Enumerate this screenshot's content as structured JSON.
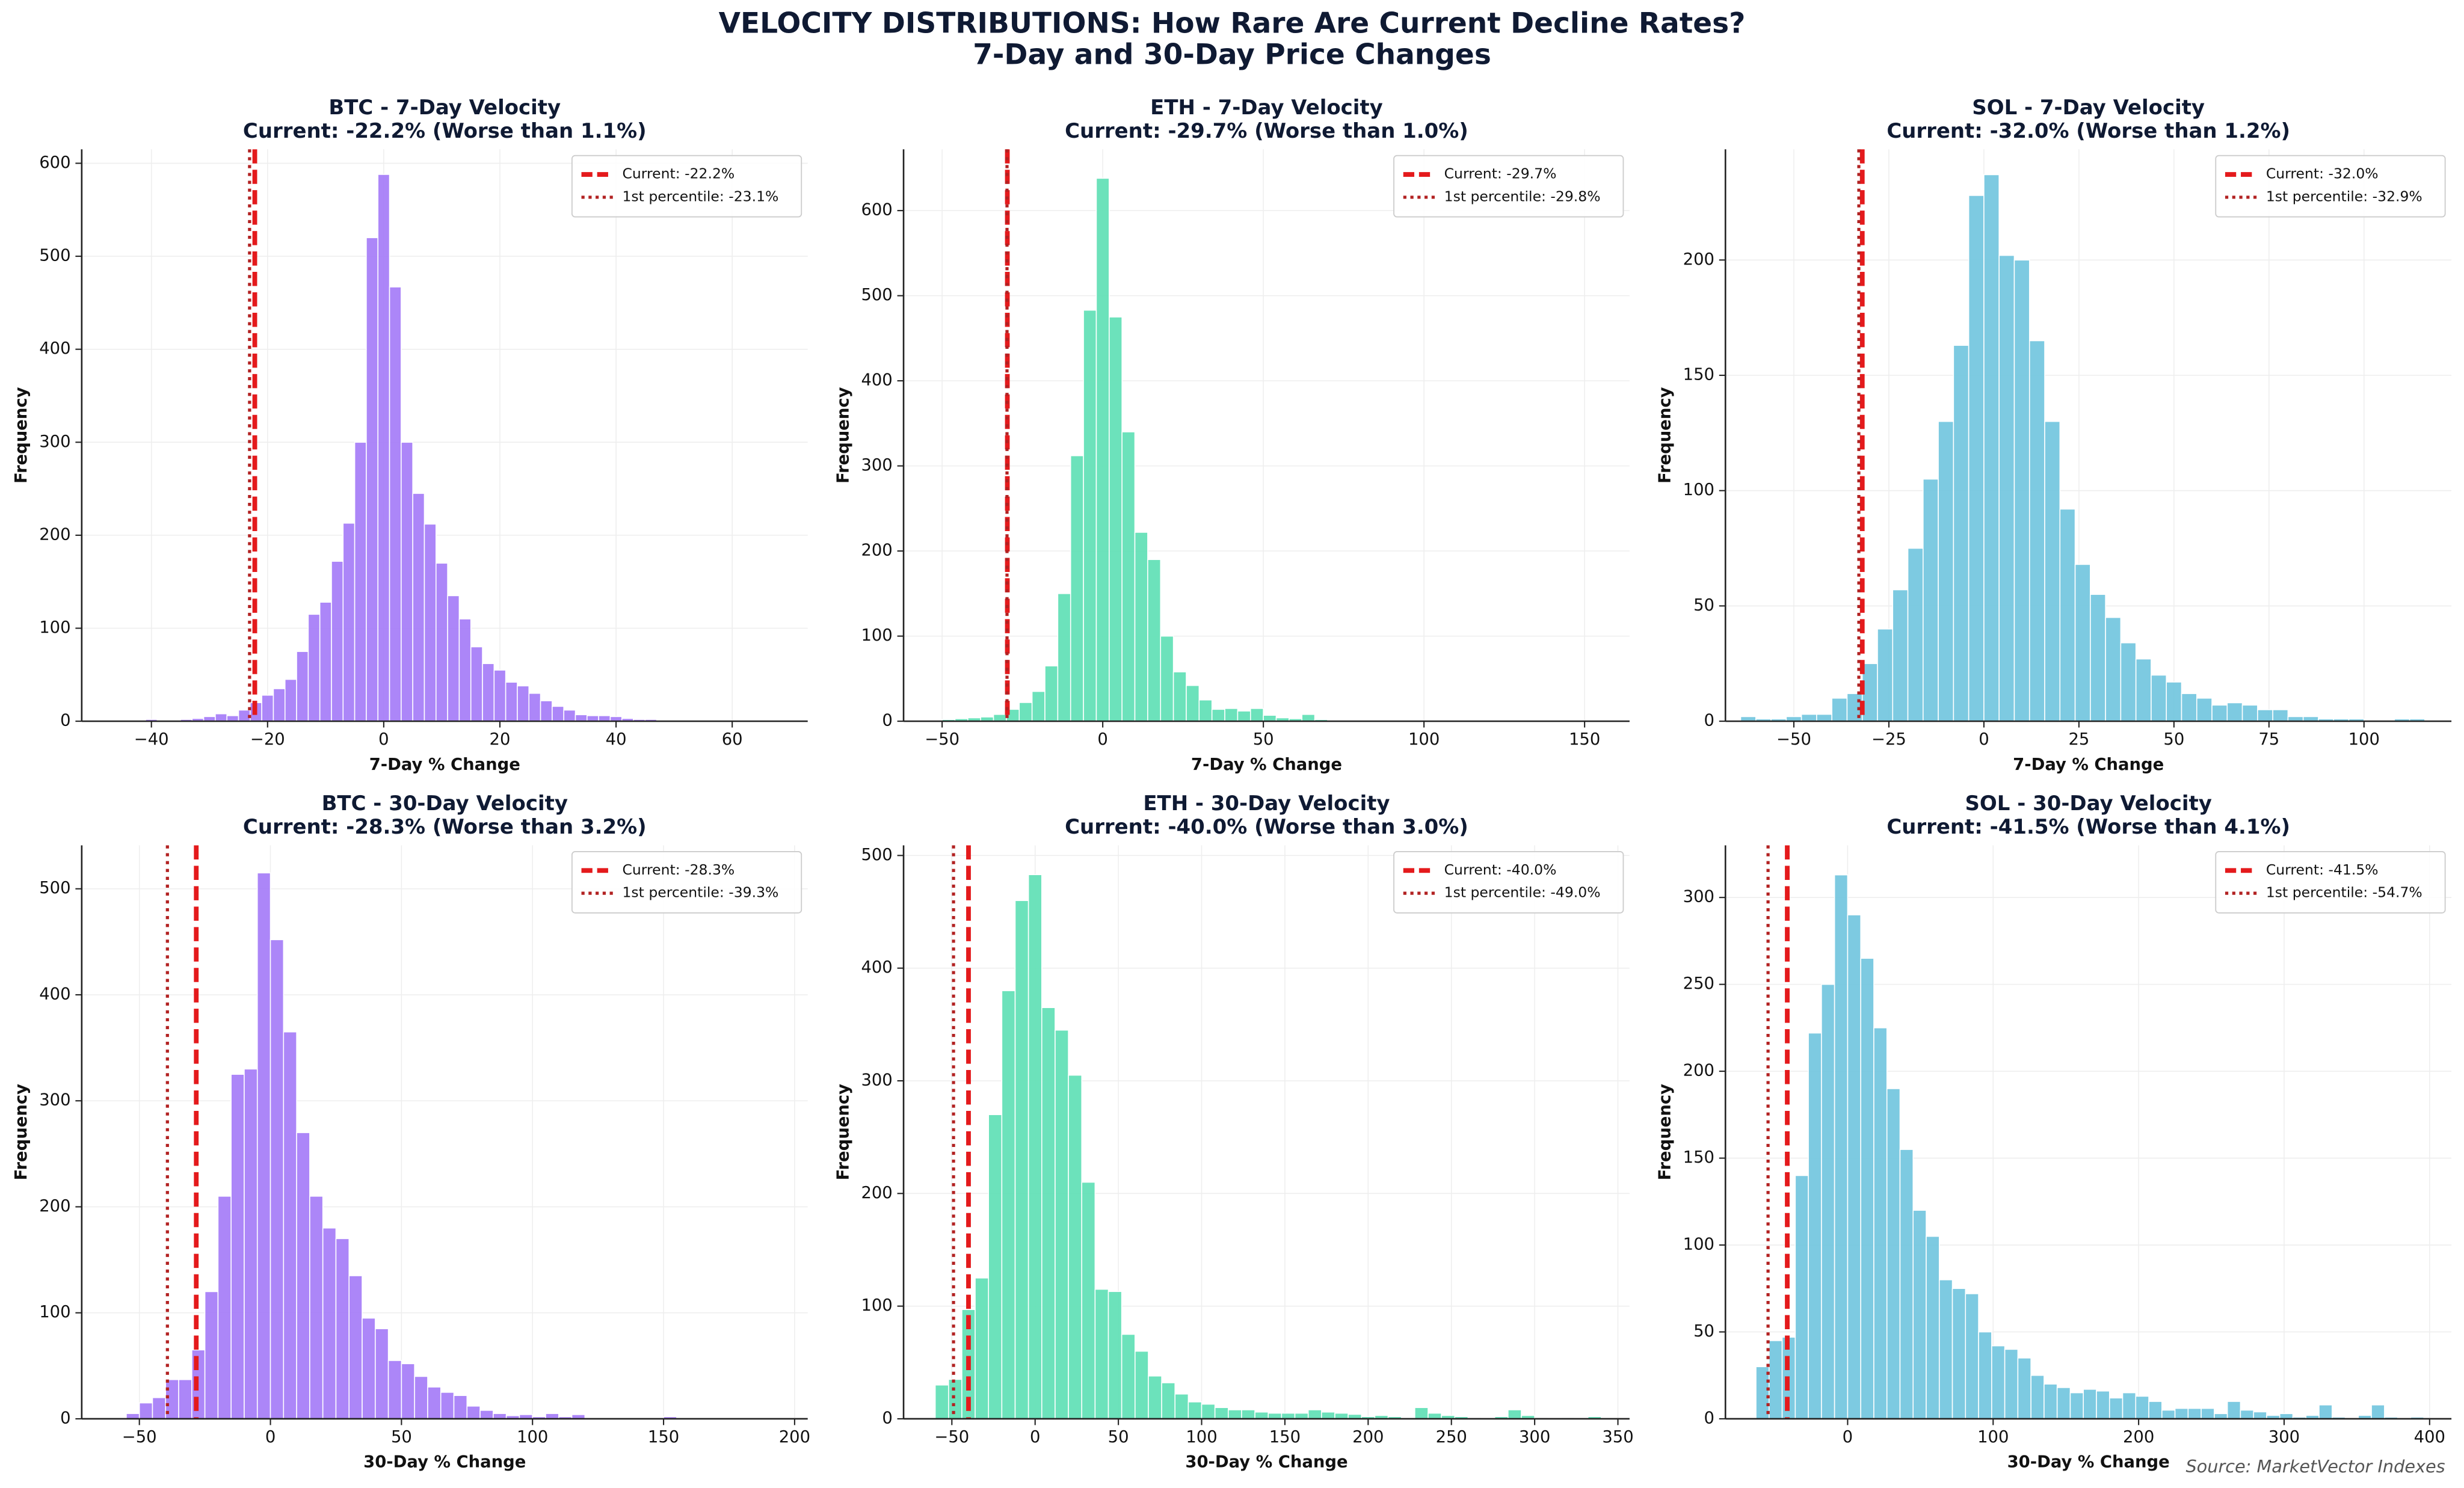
{
  "title": "VELOCITY DISTRIBUTIONS: How Rare Are Current Decline Rates?",
  "subtitle": "7-Day and 30-Day Price Changes",
  "source": "Source: MarketVector Indexes",
  "chart_data": [
    {
      "type": "histogram",
      "title": "BTC - 7-Day Velocity",
      "subtitle": "Current: -22.2% (Worse than 1.1%)",
      "xlabel": "7-Day % Change",
      "ylabel": "Frequency",
      "color": "#a57cf7",
      "grid": true,
      "legend": "upper right",
      "bins": [
        -47,
        -45,
        -43,
        -41,
        -39,
        -37,
        -35,
        -33,
        -31,
        -29,
        -27,
        -25,
        -23,
        -21,
        -19,
        -17,
        -15,
        -13,
        -11,
        -9,
        -7,
        -5,
        -3,
        -1,
        1,
        3,
        5,
        7,
        9,
        11,
        13,
        15,
        17,
        19,
        21,
        23,
        25,
        27,
        29,
        31,
        33,
        35,
        37,
        39,
        41,
        43,
        45,
        47,
        49,
        51,
        53,
        55,
        57,
        59,
        61,
        63,
        65,
        67,
        69
      ],
      "values": [
        1,
        0,
        1,
        2,
        1,
        1,
        2,
        3,
        5,
        8,
        6,
        12,
        20,
        28,
        35,
        45,
        75,
        115,
        128,
        172,
        213,
        300,
        520,
        588,
        467,
        300,
        245,
        212,
        170,
        135,
        110,
        80,
        62,
        55,
        42,
        38,
        30,
        22,
        16,
        12,
        7,
        6,
        6,
        5,
        3,
        2,
        2,
        1,
        1,
        1,
        0,
        0,
        0,
        0,
        0,
        0,
        1,
        0,
        1
      ],
      "lines": [
        {
          "name": "Current: -22.2%",
          "value": -22.2,
          "color": "#e41a1c",
          "style": "dashed"
        },
        {
          "name": "1st percentile: -23.1%",
          "value": -23.1,
          "color": "#b22222",
          "style": "dotted"
        }
      ],
      "xlim": [
        -52,
        73
      ],
      "ylim": [
        0,
        615
      ],
      "xticks": [
        {
          "value": -40,
          "label": "−40"
        },
        {
          "value": -20,
          "label": "−20"
        },
        0,
        20,
        40,
        60
      ],
      "yticks": [
        0,
        100,
        200,
        300,
        400,
        500,
        600
      ]
    },
    {
      "type": "histogram",
      "title": "ETH - 7-Day Velocity",
      "subtitle": "Current: -29.7% (Worse than 1.0%)",
      "xlabel": "7-Day % Change",
      "ylabel": "Frequency",
      "color": "#5fe0b5",
      "grid": true,
      "legend": "upper right",
      "bins": [
        -58,
        -54,
        -50,
        -46,
        -42,
        -38,
        -34,
        -30,
        -26,
        -22,
        -18,
        -14,
        -10,
        -6,
        -2,
        2,
        6,
        10,
        14,
        18,
        22,
        26,
        30,
        34,
        38,
        42,
        46,
        50,
        54,
        58,
        62,
        66,
        70,
        74,
        78,
        82,
        86,
        90,
        94,
        98,
        102,
        106,
        110,
        114,
        118,
        122,
        126,
        130,
        134,
        138,
        142,
        146,
        150,
        154,
        158,
        162
      ],
      "values": [
        1,
        1,
        2,
        3,
        4,
        5,
        8,
        14,
        22,
        35,
        65,
        150,
        312,
        483,
        638,
        475,
        340,
        222,
        190,
        100,
        58,
        42,
        25,
        14,
        15,
        12,
        15,
        7,
        4,
        3,
        8,
        2,
        1,
        1,
        0,
        0,
        0,
        0,
        0,
        0,
        0,
        0,
        1,
        0,
        0,
        0,
        0,
        0,
        0,
        0,
        0,
        0,
        0,
        0,
        0
      ],
      "lines": [
        {
          "name": "Current: -29.7%",
          "value": -29.7,
          "color": "#e41a1c",
          "style": "dashed"
        },
        {
          "name": "1st percentile: -29.8%",
          "value": -29.8,
          "color": "#b22222",
          "style": "dotted"
        }
      ],
      "xlim": [
        -62,
        164
      ],
      "ylim": [
        0,
        672
      ],
      "xticks": [
        {
          "value": -50,
          "label": "−50"
        },
        0,
        50,
        100,
        150
      ],
      "yticks": [
        0,
        100,
        200,
        300,
        400,
        500,
        600
      ]
    },
    {
      "type": "histogram",
      "title": "SOL - 7-Day Velocity",
      "subtitle": "Current: -32.0% (Worse than 1.2%)",
      "xlabel": "7-Day % Change",
      "ylabel": "Frequency",
      "color": "#72c6de",
      "grid": true,
      "legend": "upper right",
      "bins": [
        -64,
        -60,
        -56,
        -52,
        -48,
        -44,
        -40,
        -36,
        -32,
        -28,
        -24,
        -20,
        -16,
        -12,
        -8,
        -4,
        0,
        4,
        8,
        12,
        16,
        20,
        24,
        28,
        32,
        36,
        40,
        44,
        48,
        52,
        56,
        60,
        64,
        68,
        72,
        76,
        80,
        84,
        88,
        92,
        96,
        100,
        104,
        108,
        112,
        116,
        120
      ],
      "values": [
        2,
        1,
        1,
        2,
        3,
        3,
        10,
        12,
        25,
        40,
        57,
        75,
        105,
        130,
        163,
        228,
        237,
        202,
        200,
        165,
        130,
        92,
        68,
        55,
        45,
        34,
        27,
        20,
        17,
        12,
        10,
        7,
        8,
        7,
        5,
        5,
        2,
        2,
        1,
        1,
        1,
        0,
        0,
        1,
        1,
        0
      ],
      "lines": [
        {
          "name": "Current: -32.0%",
          "value": -32.0,
          "color": "#e41a1c",
          "style": "dashed"
        },
        {
          "name": "1st percentile: -32.9%",
          "value": -32.9,
          "color": "#b22222",
          "style": "dotted"
        }
      ],
      "xlim": [
        -68,
        123
      ],
      "ylim": [
        0,
        248
      ],
      "xticks": [
        {
          "value": -50,
          "label": "−50"
        },
        {
          "value": -25,
          "label": "−25"
        },
        0,
        25,
        50,
        75,
        100
      ],
      "yticks": [
        0,
        50,
        100,
        150,
        200
      ]
    },
    {
      "type": "histogram",
      "title": "BTC - 30-Day Velocity",
      "subtitle": "Current: -28.3% (Worse than 3.2%)",
      "xlabel": "30-Day % Change",
      "ylabel": "Frequency",
      "color": "#a57cf7",
      "grid": true,
      "legend": "upper right",
      "bins": [
        -55,
        -50,
        -45,
        -40,
        -35,
        -30,
        -25,
        -20,
        -15,
        -10,
        -5,
        0,
        5,
        10,
        15,
        20,
        25,
        30,
        35,
        40,
        45,
        50,
        55,
        60,
        65,
        70,
        75,
        80,
        85,
        90,
        95,
        100,
        105,
        110,
        115,
        120,
        125,
        130,
        135,
        140,
        145,
        150,
        155
      ],
      "values": [
        5,
        15,
        20,
        37,
        37,
        65,
        120,
        210,
        325,
        330,
        515,
        452,
        365,
        270,
        210,
        180,
        170,
        135,
        95,
        85,
        55,
        52,
        40,
        30,
        25,
        22,
        12,
        8,
        5,
        3,
        4,
        2,
        5,
        2,
        4,
        0,
        0,
        0,
        0,
        0,
        0,
        2
      ],
      "lines": [
        {
          "name": "Current: -28.3%",
          "value": -28.3,
          "color": "#e41a1c",
          "style": "dashed"
        },
        {
          "name": "1st percentile: -39.3%",
          "value": -39.3,
          "color": "#b22222",
          "style": "dotted"
        }
      ],
      "xlim": [
        -72,
        205
      ],
      "ylim": [
        0,
        541
      ],
      "xticks": [
        {
          "value": -50,
          "label": "−50"
        },
        0,
        50,
        100,
        150,
        200
      ],
      "yticks": [
        0,
        100,
        200,
        300,
        400,
        500
      ]
    },
    {
      "type": "histogram",
      "title": "ETH - 30-Day Velocity",
      "subtitle": "Current: -40.0% (Worse than 3.0%)",
      "xlabel": "30-Day % Change",
      "ylabel": "Frequency",
      "color": "#5fe0b5",
      "grid": true,
      "legend": "upper right",
      "bins": [
        -60,
        -52,
        -44,
        -36,
        -28,
        -20,
        -12,
        -4,
        4,
        12,
        20,
        28,
        36,
        44,
        52,
        60,
        68,
        76,
        84,
        92,
        100,
        108,
        116,
        124,
        132,
        140,
        148,
        156,
        164,
        172,
        180,
        188,
        196,
        204,
        212,
        220,
        228,
        236,
        244,
        252,
        260,
        268,
        276,
        284,
        292,
        300,
        308,
        316,
        324,
        332,
        340
      ],
      "values": [
        30,
        35,
        97,
        125,
        270,
        380,
        460,
        483,
        365,
        345,
        305,
        210,
        115,
        113,
        75,
        60,
        38,
        32,
        22,
        15,
        13,
        10,
        8,
        8,
        6,
        5,
        5,
        5,
        8,
        6,
        5,
        4,
        2,
        3,
        2,
        1,
        10,
        5,
        3,
        2,
        1,
        0,
        2,
        8,
        3,
        1,
        0,
        1,
        0,
        2
      ],
      "lines": [
        {
          "name": "Current: -40.0%",
          "value": -40.0,
          "color": "#e41a1c",
          "style": "dashed"
        },
        {
          "name": "1st percentile: -49.0%",
          "value": -49.0,
          "color": "#b22222",
          "style": "dotted"
        }
      ],
      "xlim": [
        -79,
        357
      ],
      "ylim": [
        0,
        509
      ],
      "xticks": [
        {
          "value": -50,
          "label": "−50"
        },
        0,
        50,
        100,
        150,
        200,
        250,
        300,
        350
      ],
      "yticks": [
        0,
        100,
        200,
        300,
        400,
        500
      ]
    },
    {
      "type": "histogram",
      "title": "SOL - 30-Day Velocity",
      "subtitle": "Current: -41.5% (Worse than 4.1%)",
      "xlabel": "30-Day % Change",
      "ylabel": "Frequency",
      "color": "#72c6de",
      "grid": true,
      "legend": "upper right",
      "bins": [
        -63,
        -54,
        -45,
        -36,
        -27,
        -18,
        -9,
        0,
        9,
        18,
        27,
        36,
        45,
        54,
        63,
        72,
        81,
        90,
        99,
        108,
        117,
        126,
        135,
        144,
        153,
        162,
        171,
        180,
        189,
        198,
        207,
        216,
        225,
        234,
        243,
        252,
        261,
        270,
        279,
        288,
        297,
        306,
        315,
        324,
        333,
        342,
        351,
        360,
        369,
        378,
        387,
        396
      ],
      "values": [
        30,
        45,
        47,
        140,
        222,
        250,
        313,
        290,
        265,
        225,
        190,
        155,
        120,
        105,
        80,
        75,
        72,
        50,
        42,
        40,
        35,
        25,
        20,
        18,
        15,
        17,
        16,
        12,
        15,
        13,
        10,
        5,
        6,
        6,
        6,
        3,
        10,
        5,
        4,
        2,
        3,
        1,
        2,
        8,
        1,
        0,
        2,
        8,
        1,
        0,
        1
      ],
      "lines": [
        {
          "name": "Current: -41.5%",
          "value": -41.5,
          "color": "#e41a1c",
          "style": "dashed"
        },
        {
          "name": "1st percentile: -54.7%",
          "value": -54.7,
          "color": "#b22222",
          "style": "dotted"
        }
      ],
      "xlim": [
        -84,
        415
      ],
      "ylim": [
        0,
        330
      ],
      "xticks": [
        0,
        100,
        200,
        300,
        400
      ],
      "yticks": [
        0,
        50,
        100,
        150,
        200,
        250,
        300
      ]
    }
  ]
}
